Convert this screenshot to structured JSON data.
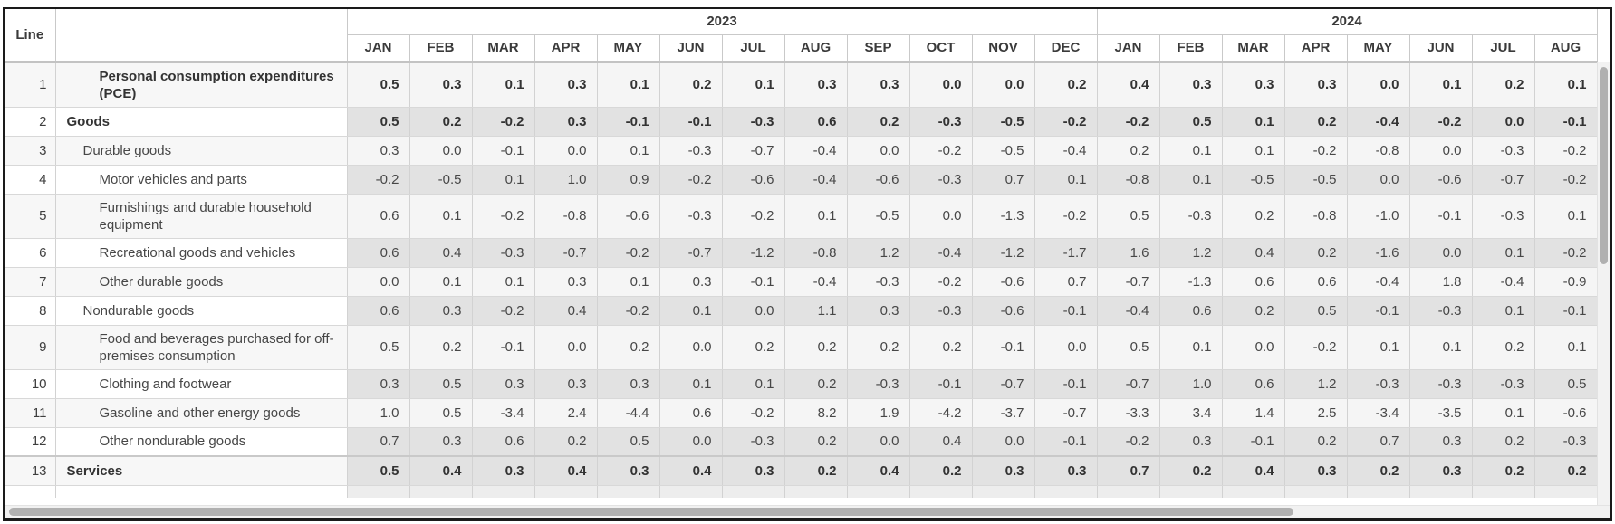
{
  "table": {
    "line_column_header": "Line",
    "description_column_header": "",
    "year_groups": [
      {
        "label": "2023",
        "months": [
          "JAN",
          "FEB",
          "MAR",
          "APR",
          "MAY",
          "JUN",
          "JUL",
          "AUG",
          "SEP",
          "OCT",
          "NOV",
          "DEC"
        ]
      },
      {
        "label": "2024",
        "months": [
          "JAN",
          "FEB",
          "MAR",
          "APR",
          "MAY",
          "JUN",
          "JUL",
          "AUG"
        ]
      }
    ],
    "rows": [
      {
        "line": "1",
        "label": "Personal consumption expenditures (PCE)",
        "indent": 2,
        "bold": true,
        "shaded": false,
        "thick_top": false,
        "values": [
          "0.5",
          "0.3",
          "0.1",
          "0.3",
          "0.1",
          "0.2",
          "0.1",
          "0.3",
          "0.3",
          "0.0",
          "0.0",
          "0.2",
          "0.4",
          "0.3",
          "0.3",
          "0.3",
          "0.0",
          "0.1",
          "0.2",
          "0.1"
        ]
      },
      {
        "line": "2",
        "label": "Goods",
        "indent": 0,
        "bold": true,
        "shaded": true,
        "thick_top": false,
        "values": [
          "0.5",
          "0.2",
          "-0.2",
          "0.3",
          "-0.1",
          "-0.1",
          "-0.3",
          "0.6",
          "0.2",
          "-0.3",
          "-0.5",
          "-0.2",
          "-0.2",
          "0.5",
          "0.1",
          "0.2",
          "-0.4",
          "-0.2",
          "0.0",
          "-0.1"
        ]
      },
      {
        "line": "3",
        "label": "Durable goods",
        "indent": 1,
        "bold": false,
        "shaded": false,
        "thick_top": false,
        "values": [
          "0.3",
          "0.0",
          "-0.1",
          "0.0",
          "0.1",
          "-0.3",
          "-0.7",
          "-0.4",
          "0.0",
          "-0.2",
          "-0.5",
          "-0.4",
          "0.2",
          "0.1",
          "0.1",
          "-0.2",
          "-0.8",
          "0.0",
          "-0.3",
          "-0.2"
        ]
      },
      {
        "line": "4",
        "label": "Motor vehicles and parts",
        "indent": 2,
        "bold": false,
        "shaded": true,
        "thick_top": false,
        "values": [
          "-0.2",
          "-0.5",
          "0.1",
          "1.0",
          "0.9",
          "-0.2",
          "-0.6",
          "-0.4",
          "-0.6",
          "-0.3",
          "0.7",
          "0.1",
          "-0.8",
          "0.1",
          "-0.5",
          "-0.5",
          "0.0",
          "-0.6",
          "-0.7",
          "-0.2"
        ]
      },
      {
        "line": "5",
        "label": "Furnishings and durable household equipment",
        "indent": 2,
        "bold": false,
        "shaded": false,
        "thick_top": false,
        "values": [
          "0.6",
          "0.1",
          "-0.2",
          "-0.8",
          "-0.6",
          "-0.3",
          "-0.2",
          "0.1",
          "-0.5",
          "0.0",
          "-1.3",
          "-0.2",
          "0.5",
          "-0.3",
          "0.2",
          "-0.8",
          "-1.0",
          "-0.1",
          "-0.3",
          "0.1"
        ]
      },
      {
        "line": "6",
        "label": "Recreational goods and vehicles",
        "indent": 2,
        "bold": false,
        "shaded": true,
        "thick_top": false,
        "values": [
          "0.6",
          "0.4",
          "-0.3",
          "-0.7",
          "-0.2",
          "-0.7",
          "-1.2",
          "-0.8",
          "1.2",
          "-0.4",
          "-1.2",
          "-1.7",
          "1.6",
          "1.2",
          "0.4",
          "0.2",
          "-1.6",
          "0.0",
          "0.1",
          "-0.2"
        ]
      },
      {
        "line": "7",
        "label": "Other durable goods",
        "indent": 2,
        "bold": false,
        "shaded": false,
        "thick_top": false,
        "values": [
          "0.0",
          "0.1",
          "0.1",
          "0.3",
          "0.1",
          "0.3",
          "-0.1",
          "-0.4",
          "-0.3",
          "-0.2",
          "-0.6",
          "0.7",
          "-0.7",
          "-1.3",
          "0.6",
          "0.6",
          "-0.4",
          "1.8",
          "-0.4",
          "-0.9"
        ]
      },
      {
        "line": "8",
        "label": "Nondurable goods",
        "indent": 1,
        "bold": false,
        "shaded": true,
        "thick_top": false,
        "values": [
          "0.6",
          "0.3",
          "-0.2",
          "0.4",
          "-0.2",
          "0.1",
          "0.0",
          "1.1",
          "0.3",
          "-0.3",
          "-0.6",
          "-0.1",
          "-0.4",
          "0.6",
          "0.2",
          "0.5",
          "-0.1",
          "-0.3",
          "0.1",
          "-0.1"
        ]
      },
      {
        "line": "9",
        "label": "Food and beverages purchased for off-premises consumption",
        "indent": 2,
        "bold": false,
        "shaded": false,
        "thick_top": false,
        "values": [
          "0.5",
          "0.2",
          "-0.1",
          "0.0",
          "0.2",
          "0.0",
          "0.2",
          "0.2",
          "0.2",
          "0.2",
          "-0.1",
          "0.0",
          "0.5",
          "0.1",
          "0.0",
          "-0.2",
          "0.1",
          "0.1",
          "0.2",
          "0.1"
        ]
      },
      {
        "line": "10",
        "label": "Clothing and footwear",
        "indent": 2,
        "bold": false,
        "shaded": true,
        "thick_top": false,
        "values": [
          "0.3",
          "0.5",
          "0.3",
          "0.3",
          "0.3",
          "0.1",
          "0.1",
          "0.2",
          "-0.3",
          "-0.1",
          "-0.7",
          "-0.1",
          "-0.7",
          "1.0",
          "0.6",
          "1.2",
          "-0.3",
          "-0.3",
          "-0.3",
          "0.5"
        ]
      },
      {
        "line": "11",
        "label": "Gasoline and other energy goods",
        "indent": 2,
        "bold": false,
        "shaded": false,
        "thick_top": false,
        "values": [
          "1.0",
          "0.5",
          "-3.4",
          "2.4",
          "-4.4",
          "0.6",
          "-0.2",
          "8.2",
          "1.9",
          "-4.2",
          "-3.7",
          "-0.7",
          "-3.3",
          "3.4",
          "1.4",
          "2.5",
          "-3.4",
          "-3.5",
          "0.1",
          "-0.6"
        ]
      },
      {
        "line": "12",
        "label": "Other nondurable goods",
        "indent": 2,
        "bold": false,
        "shaded": true,
        "thick_top": false,
        "values": [
          "0.7",
          "0.3",
          "0.6",
          "0.2",
          "0.5",
          "0.0",
          "-0.3",
          "0.2",
          "0.0",
          "0.4",
          "0.0",
          "-0.1",
          "-0.2",
          "0.3",
          "-0.1",
          "0.2",
          "0.7",
          "0.3",
          "0.2",
          "-0.3"
        ]
      },
      {
        "line": "13",
        "label": "Services",
        "indent": 0,
        "bold": true,
        "shaded": true,
        "thick_top": true,
        "values": [
          "0.5",
          "0.4",
          "0.3",
          "0.4",
          "0.3",
          "0.4",
          "0.3",
          "0.2",
          "0.4",
          "0.2",
          "0.3",
          "0.3",
          "0.7",
          "0.2",
          "0.4",
          "0.3",
          "0.2",
          "0.3",
          "0.2",
          "0.2"
        ]
      }
    ]
  },
  "colors": {
    "shaded_data_cell": "#e2e2e2",
    "light_data_cell": "#f5f5f5",
    "shaded_label_cell": "#f7f7f7",
    "header_rule": "#c3c3c3",
    "scrollbar_thumb": "#b0b0b0",
    "outer_border": "#1a1a1a"
  }
}
